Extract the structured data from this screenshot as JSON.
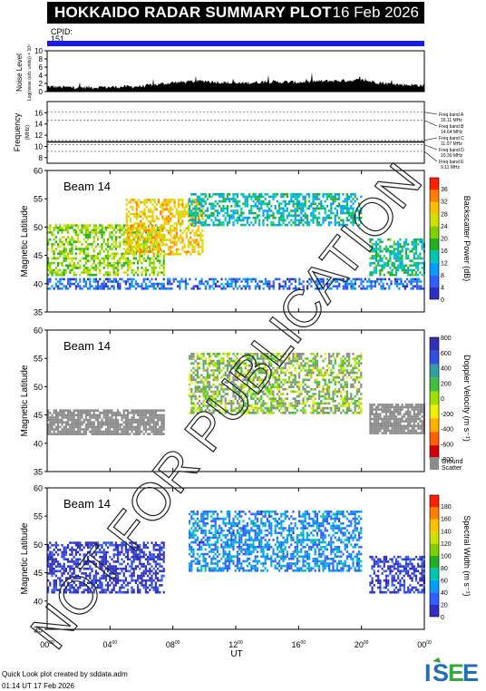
{
  "header": {
    "title": "HOKKAIDO RADAR SUMMARY PLOT",
    "date": "16 Feb 2026"
  },
  "cpid": {
    "label": "CPID:",
    "value": "151"
  },
  "noise": {
    "label": "Noise Level",
    "sublabel": "Log(noise (arb. units)) × 10⁴",
    "yticks": [
      "0",
      "2",
      "4",
      "6",
      "8",
      "10"
    ]
  },
  "frequency": {
    "label": "Frequency",
    "unit": "(MHz)",
    "yticks": [
      "8",
      "10",
      "12",
      "14",
      "16"
    ],
    "bands": [
      {
        "name": "Freq band A",
        "value": "16.11 MHz",
        "mhz": 16.11
      },
      {
        "name": "Freq band B",
        "value": "14.64 MHz",
        "mhz": 14.64
      },
      {
        "name": "Freq band C",
        "value": "11.07 MHz",
        "mhz": 11.07
      },
      {
        "name": "Freq band D",
        "value": "10.30 MHz",
        "mhz": 10.3
      },
      {
        "name": "Freq band E",
        "value": "9.11 MHz",
        "mhz": 9.11
      }
    ]
  },
  "panels": [
    {
      "beam": "Beam 14",
      "ylabel": "Magnetic Latitude",
      "yticks": [
        "35",
        "40",
        "45",
        "50",
        "55",
        "60"
      ],
      "colorbar_label": "Backscatter Power (dB)",
      "colorbar_ticks": [
        "0",
        "4",
        "8",
        "12",
        "16",
        "20",
        "24",
        "28",
        "32",
        "36"
      ]
    },
    {
      "beam": "Beam 14",
      "ylabel": "Magnetic Latitude",
      "yticks": [
        "35",
        "40",
        "45",
        "50",
        "55",
        "60"
      ],
      "colorbar_label": "Doppler Velocity (m s⁻¹)",
      "colorbar_ticks": [
        "-800",
        "-600",
        "-400",
        "-200",
        "0",
        "200",
        "400",
        "600",
        "800"
      ],
      "ground_label_1": "Ground",
      "ground_label_2": "Scatter"
    },
    {
      "beam": "Beam 14",
      "ylabel": "Magnetic Latitude",
      "yticks": [
        "35",
        "40",
        "45",
        "50",
        "55",
        "60"
      ],
      "colorbar_label": "Spectral Width (m s⁻¹)",
      "colorbar_ticks": [
        "0",
        "20",
        "40",
        "60",
        "80",
        "100",
        "120",
        "140",
        "160",
        "180"
      ]
    }
  ],
  "xaxis": {
    "label": "UT",
    "ticks": [
      {
        "h": "00",
        "m": "00"
      },
      {
        "h": "04",
        "m": "00"
      },
      {
        "h": "08",
        "m": "00"
      },
      {
        "h": "12",
        "m": "00"
      },
      {
        "h": "16",
        "m": "00"
      },
      {
        "h": "20",
        "m": "00"
      },
      {
        "h": "00",
        "m": "00"
      }
    ]
  },
  "footer": {
    "line1": "Quick Look plot created by sddata.adm",
    "line2": "01:14 UT 17 Feb 2026"
  },
  "watermark": "NOT FOR PUBLICATION",
  "logo": "ISEE",
  "colors": {
    "cpid_bar": "#1a1aee",
    "ground_scatter": "#8c8c8c"
  },
  "chart_data": [
    {
      "type": "area",
      "ylabel": "Noise Level",
      "ylim": [
        0,
        10
      ],
      "x": [
        0,
        2,
        4,
        6,
        8,
        10,
        12,
        14,
        16,
        18,
        20,
        22,
        24
      ],
      "values": [
        1.2,
        1.0,
        1.1,
        1.3,
        2.2,
        2.6,
        2.0,
        2.4,
        2.3,
        2.6,
        2.8,
        1.8,
        1.5
      ]
    },
    {
      "type": "line",
      "ylabel": "Frequency",
      "ylim": [
        7,
        18
      ],
      "x": [
        0,
        24
      ],
      "series": [
        {
          "values": [
            10.8,
            10.8
          ]
        }
      ]
    },
    {
      "type": "heatmap",
      "ylabel": "Magnetic Latitude",
      "xlabel": "UT",
      "xlim": [
        0,
        24
      ],
      "ylim": [
        35,
        60
      ],
      "colorbar": "Backscatter Power (dB)",
      "clim": [
        0,
        36
      ],
      "regions": [
        {
          "x": [
            0,
            7.5
          ],
          "lat": [
            41.5,
            50.5
          ],
          "value": 20
        },
        {
          "x": [
            5,
            10
          ],
          "lat": [
            45,
            55
          ],
          "value": 26
        },
        {
          "x": [
            9,
            20
          ],
          "lat": [
            50,
            56
          ],
          "value": 12
        },
        {
          "x": [
            20.5,
            24
          ],
          "lat": [
            41.5,
            48
          ],
          "value": 14
        },
        {
          "x": [
            0,
            24
          ],
          "lat": [
            39,
            41
          ],
          "value": 6
        }
      ]
    },
    {
      "type": "heatmap",
      "ylabel": "Magnetic Latitude",
      "xlabel": "UT",
      "xlim": [
        0,
        24
      ],
      "ylim": [
        35,
        60
      ],
      "colorbar": "Doppler Velocity (m s⁻¹)",
      "clim": [
        -800,
        800
      ],
      "regions": [
        {
          "x": [
            0,
            7.5
          ],
          "lat": [
            41.5,
            46
          ],
          "value": "ground"
        },
        {
          "x": [
            20.5,
            24
          ],
          "lat": [
            41.5,
            47
          ],
          "value": "ground"
        },
        {
          "x": [
            9,
            20
          ],
          "lat": [
            45,
            56
          ],
          "value": 50
        }
      ]
    },
    {
      "type": "heatmap",
      "ylabel": "Magnetic Latitude",
      "xlabel": "UT",
      "xlim": [
        0,
        24
      ],
      "ylim": [
        35,
        60
      ],
      "colorbar": "Spectral Width (m s⁻¹)",
      "clim": [
        0,
        180
      ],
      "regions": [
        {
          "x": [
            0,
            7.5
          ],
          "lat": [
            41.5,
            50.5
          ],
          "value": 8
        },
        {
          "x": [
            9,
            20
          ],
          "lat": [
            45,
            56
          ],
          "value": 40
        },
        {
          "x": [
            20.5,
            24
          ],
          "lat": [
            41.5,
            48
          ],
          "value": 10
        }
      ]
    }
  ]
}
